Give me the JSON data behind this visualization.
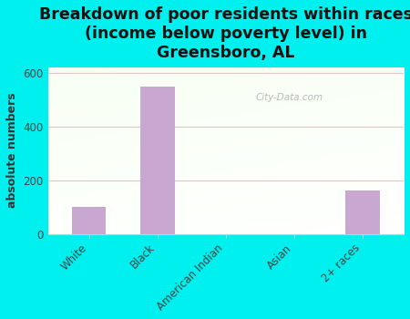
{
  "title": "Breakdown of poor residents within races\n(income below poverty level) in\nGreensboro, AL",
  "ylabel": "absolute numbers",
  "categories": [
    "White",
    "Black",
    "American Indian",
    "Asian",
    "2+ races"
  ],
  "values": [
    100,
    547,
    0,
    0,
    160
  ],
  "bar_color": "#c8a8d0",
  "background_color": "#00efef",
  "plot_bg_color_topleft": "#daefd0",
  "plot_bg_color_topright": "#edfaed",
  "plot_bg_color_bottom": "#f8fff8",
  "ylim": [
    0,
    620
  ],
  "yticks": [
    0,
    200,
    400,
    600
  ],
  "title_fontsize": 12.5,
  "axis_label_fontsize": 9,
  "tick_fontsize": 8.5,
  "watermark": "City-Data.com",
  "grid_color": "#e0c8c8",
  "spine_color": "#cccccc"
}
